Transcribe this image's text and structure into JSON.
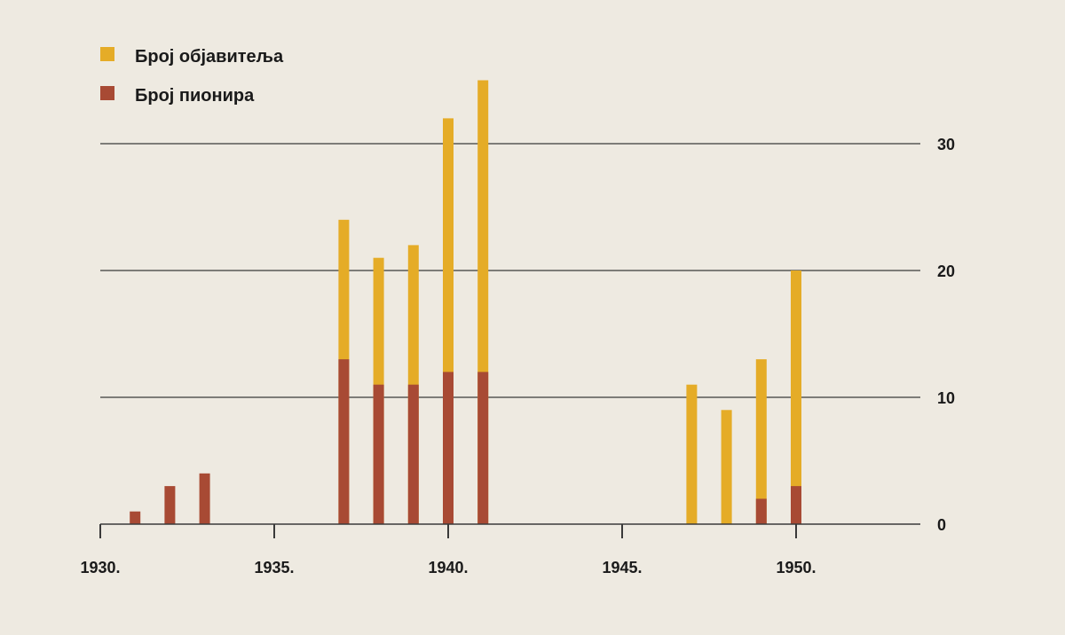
{
  "colors": {
    "background": "#eeeae1",
    "publishers": "#e5ac27",
    "pioneers": "#a84a34",
    "grid": "#3a3a3a"
  },
  "legend": {
    "position": "top-left",
    "items": [
      {
        "label": "Број објавитеља",
        "color": "#e5ac27"
      },
      {
        "label": "Број пионира",
        "color": "#a84a34"
      }
    ]
  },
  "chart_data": {
    "type": "bar",
    "stacked_overlay": true,
    "x": [
      1931,
      1932,
      1933,
      1937,
      1938,
      1939,
      1940,
      1941,
      1947,
      1948,
      1949,
      1950
    ],
    "series": [
      {
        "name": "Број објавитеља",
        "values": [
          0,
          0,
          0,
          24,
          21,
          22,
          32,
          35,
          11,
          9,
          13,
          20
        ]
      },
      {
        "name": "Број пионира",
        "values": [
          1,
          3,
          4,
          13,
          11,
          11,
          12,
          12,
          0,
          0,
          2,
          3
        ]
      }
    ],
    "xlim": [
      1930,
      1953
    ],
    "ylim": [
      0,
      35
    ],
    "x_ticks": [
      1930,
      1935,
      1940,
      1945,
      1950
    ],
    "x_tick_labels": [
      "1930.",
      "1935.",
      "1940.",
      "1945.",
      "1950."
    ],
    "y_ticks": [
      0,
      10,
      20,
      30
    ],
    "y_tick_labels": [
      "0",
      "10",
      "20",
      "30"
    ],
    "y_axis_side": "right",
    "grid": "horizontal"
  }
}
